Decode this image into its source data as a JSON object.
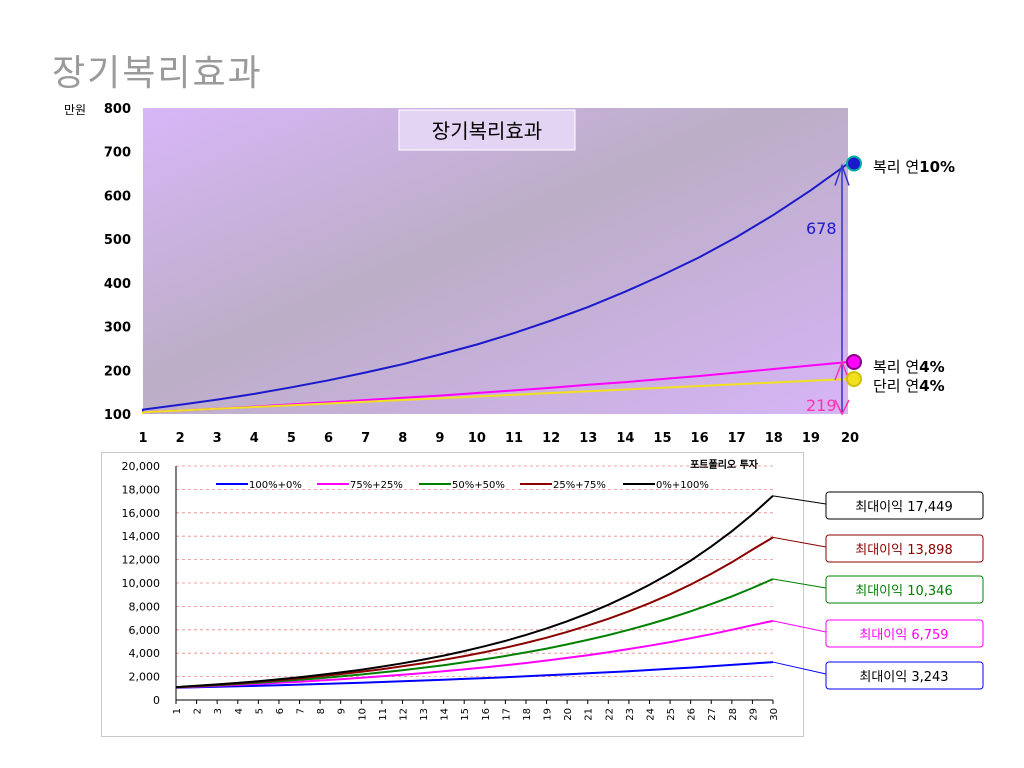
{
  "slide_title": "장기복리효과",
  "colors": {
    "compound10": "#1a1acc",
    "compound4": "#ff00ff",
    "simple4": "#f0e020",
    "diff": "#ff33aa",
    "s100": "#0000ff",
    "s75": "#ff00ff",
    "s50": "#008000",
    "s25": "#8b0000",
    "s0": "#000000"
  },
  "chart_data": [
    {
      "type": "line",
      "title": "장기복리효과",
      "ylabel": "만원",
      "xlabel": "",
      "x": [
        1,
        2,
        3,
        4,
        5,
        6,
        7,
        8,
        9,
        10,
        11,
        12,
        13,
        14,
        15,
        16,
        17,
        18,
        19,
        20
      ],
      "ylim": [
        100,
        800
      ],
      "yticks": [
        100,
        200,
        300,
        400,
        500,
        600,
        700,
        800
      ],
      "series": [
        {
          "name": "복리 연",
          "name_bold": "10%",
          "color_key": "compound10",
          "values": [
            110,
            121,
            133,
            146,
            161,
            177,
            195,
            214,
            236,
            259,
            285,
            314,
            345,
            380,
            418,
            459,
            505,
            556,
            612,
            673
          ]
        },
        {
          "name": "복리 연",
          "name_bold": "4%",
          "color_key": "compound4",
          "values": [
            104,
            108,
            112,
            117,
            122,
            127,
            132,
            137,
            142,
            148,
            154,
            160,
            167,
            173,
            180,
            187,
            195,
            203,
            211,
            219
          ]
        },
        {
          "name": "단리 연",
          "name_bold": "4%",
          "color_key": "simple4",
          "values": [
            104,
            108,
            112,
            116,
            120,
            124,
            128,
            132,
            136,
            140,
            144,
            148,
            152,
            156,
            160,
            164,
            168,
            172,
            176,
            180
          ]
        }
      ],
      "annotations": {
        "diff_label": "678",
        "value_label": "219"
      }
    },
    {
      "type": "line",
      "title": "포트폴리오 투자",
      "xlabel": "",
      "ylabel": "",
      "x": [
        1,
        2,
        3,
        4,
        5,
        6,
        7,
        8,
        9,
        10,
        11,
        12,
        13,
        14,
        15,
        16,
        17,
        18,
        19,
        20,
        21,
        22,
        23,
        24,
        25,
        26,
        27,
        28,
        29,
        30
      ],
      "ylim": [
        0,
        20000
      ],
      "yticks": [
        0,
        2000,
        4000,
        6000,
        8000,
        10000,
        12000,
        14000,
        16000,
        18000,
        20000
      ],
      "ytick_labels": [
        "0",
        "2,000",
        "4,000",
        "6,000",
        "8,000",
        "10,000",
        "12,000",
        "14,000",
        "16,000",
        "18,000",
        "20,000"
      ],
      "legend_position": "top",
      "series": [
        {
          "name": "100%+0%",
          "color_key": "s100",
          "end_label": "최대이익 3,243",
          "values": [
            1040,
            1082,
            1125,
            1170,
            1217,
            1265,
            1316,
            1369,
            1423,
            1480,
            1539,
            1601,
            1665,
            1732,
            1801,
            1873,
            1948,
            2026,
            2107,
            2191,
            2279,
            2370,
            2465,
            2563,
            2666,
            2772,
            2883,
            2999,
            3119,
            3243
          ]
        },
        {
          "name": "75%+25%",
          "color_key": "s75",
          "end_label": "최대이익 6,759",
          "values": [
            1066,
            1137,
            1212,
            1292,
            1377,
            1469,
            1566,
            1669,
            1779,
            1897,
            2022,
            2156,
            2298,
            2450,
            2612,
            2784,
            2968,
            3164,
            3373,
            3596,
            3833,
            4086,
            4356,
            4644,
            4951,
            5278,
            5626,
            5998,
            6394,
            6759
          ]
        },
        {
          "name": "50%+50%",
          "color_key": "s50",
          "end_label": "최대이익 10,346",
          "values": [
            1081,
            1169,
            1264,
            1366,
            1477,
            1597,
            1726,
            1866,
            2017,
            2181,
            2357,
            2548,
            2754,
            2977,
            3218,
            3479,
            3761,
            4065,
            4394,
            4750,
            5135,
            5551,
            6001,
            6487,
            7012,
            7580,
            8194,
            8858,
            9575,
            10346
          ]
        },
        {
          "name": "25%+75%",
          "color_key": "s25",
          "end_label": "최대이익 13,898",
          "values": [
            1092,
            1193,
            1303,
            1423,
            1554,
            1697,
            1853,
            2024,
            2210,
            2413,
            2635,
            2878,
            3143,
            3432,
            3748,
            4093,
            4469,
            4880,
            5329,
            5820,
            6355,
            6940,
            7579,
            8276,
            9038,
            9869,
            10777,
            11769,
            12852,
            13898
          ]
        },
        {
          "name": "0%+100%",
          "color_key": "s0",
          "end_label": "최대이익 17,449",
          "values": [
            1100,
            1210,
            1331,
            1464,
            1611,
            1772,
            1949,
            2144,
            2358,
            2594,
            2853,
            3138,
            3452,
            3797,
            4177,
            4595,
            5054,
            5560,
            6116,
            6727,
            7400,
            8140,
            8954,
            9850,
            10835,
            11918,
            13110,
            14421,
            15863,
            17449
          ]
        }
      ]
    }
  ]
}
